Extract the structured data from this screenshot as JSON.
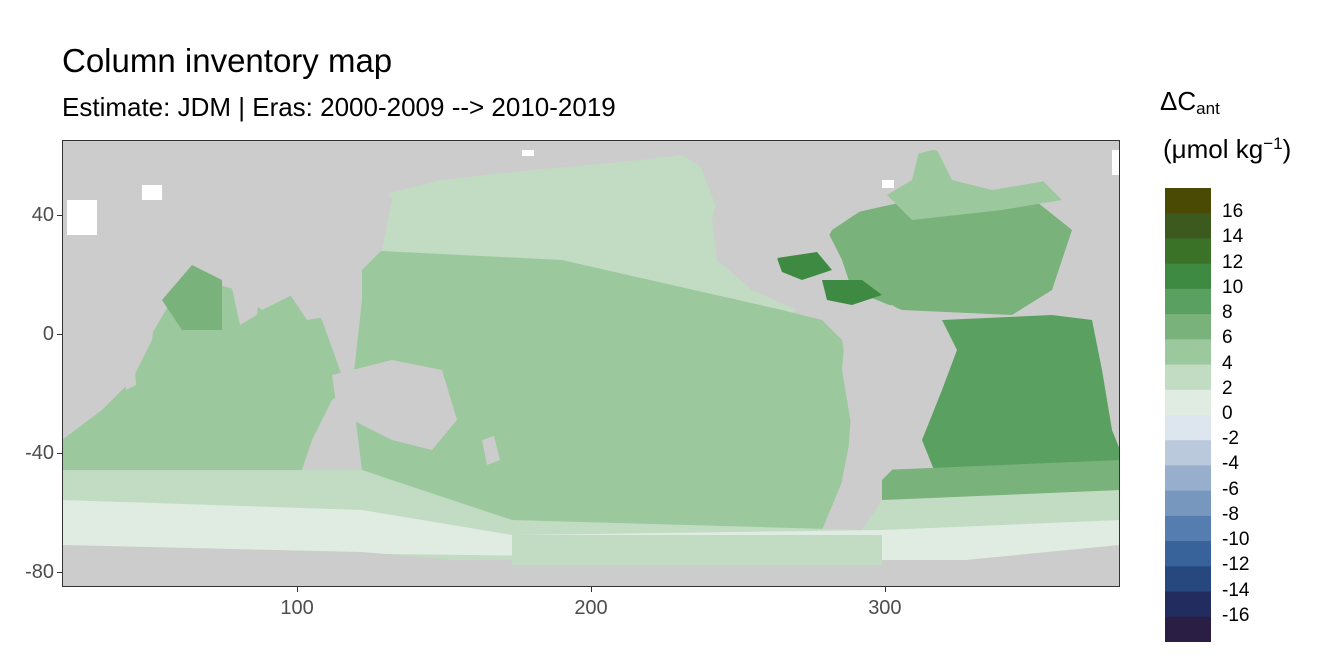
{
  "title": "Column inventory map",
  "subtitle": "Estimate: JDM  | Eras: 2000-2009 --> 2010-2019",
  "map": {
    "x_ticks": [
      "100",
      "200",
      "300"
    ],
    "y_ticks": [
      "40",
      "0",
      "-40",
      "-80"
    ],
    "x_range": [
      20,
      380
    ],
    "y_range": [
      -85,
      65
    ],
    "land_color": "#cccccc",
    "nodata_color": "#ffffff",
    "frame_color": "#333333"
  },
  "legend": {
    "title_symbol": "ΔC",
    "title_sub": "ant",
    "unit_open": "(μmol kg",
    "unit_sup": "−1",
    "unit_close": ")",
    "labels": [
      "16",
      "14",
      "12",
      "10",
      "8",
      "6",
      "4",
      "2",
      "0",
      "-2",
      "-4",
      "-6",
      "-8",
      "-10",
      "-12",
      "-14",
      "-16"
    ],
    "colors": [
      "#4a4a05",
      "#3c5a1e",
      "#3a7228",
      "#3f8a42",
      "#5aa060",
      "#79b27a",
      "#9cc89d",
      "#c1dcc3",
      "#e0ece2",
      "#dde5ee",
      "#bac9db",
      "#97aecd",
      "#7797bf",
      "#557db0",
      "#38629a",
      "#27477f",
      "#232c5e",
      "#2b1e45"
    ]
  },
  "colors": {
    "v2": "#c1dcc3",
    "v4": "#9cc89d",
    "v6": "#79b27a",
    "v8": "#5aa060",
    "v10": "#3f8a42",
    "v12": "#3a7228",
    "v0": "#e0ece2"
  }
}
